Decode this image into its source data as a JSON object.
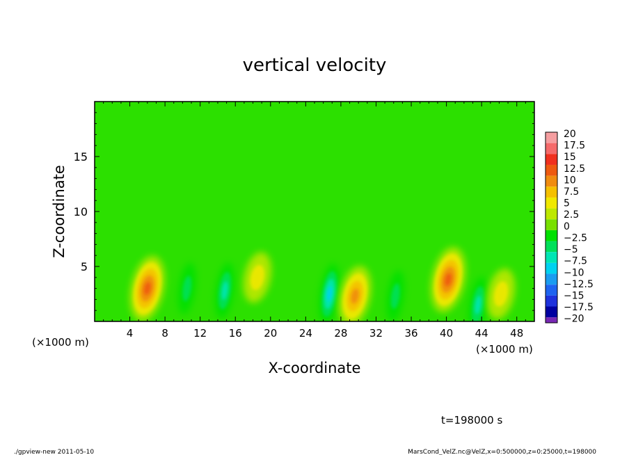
{
  "chart_data": {
    "type": "heatmap",
    "title": "vertical velocity",
    "xlabel": "X-coordinate",
    "ylabel": "Z-coordinate",
    "x_unit_left": "(×1000 m)",
    "x_unit_right": "(×1000 m)",
    "x_ticks": [
      4,
      8,
      12,
      16,
      20,
      24,
      28,
      32,
      36,
      40,
      44,
      48
    ],
    "y_ticks": [
      5,
      10,
      15
    ],
    "xlim": [
      0,
      50
    ],
    "ylim": [
      0,
      20
    ],
    "colorbar": {
      "labels": [
        "20",
        "17.5",
        "15",
        "12.5",
        "10",
        "7.5",
        "5",
        "2.5",
        "0",
        "−2.5",
        "−5",
        "−7.5",
        "−10",
        "−12.5",
        "−15",
        "−17.5",
        "−20"
      ],
      "colors": [
        "#f59ea0",
        "#f56a6a",
        "#f0301e",
        "#ee5a10",
        "#f08c10",
        "#f5c000",
        "#f0e800",
        "#bde800",
        "#78e000",
        "#00e000",
        "#00e05a",
        "#00e6b4",
        "#00d2f0",
        "#1a9cf0",
        "#1e64f0",
        "#1e32dc",
        "#0000a0",
        "#7828b4"
      ]
    },
    "features": [
      {
        "kind": "updraft",
        "x": 6.0,
        "z": 3.0,
        "value": 12.5
      },
      {
        "kind": "downdraft",
        "x": 10.5,
        "z": 3.0,
        "value": -5
      },
      {
        "kind": "downdraft",
        "x": 14.8,
        "z": 2.8,
        "value": -7.5
      },
      {
        "kind": "updraft",
        "x": 18.5,
        "z": 4.0,
        "value": 5
      },
      {
        "kind": "downdraft",
        "x": 26.7,
        "z": 2.5,
        "value": -10
      },
      {
        "kind": "updraft",
        "x": 29.6,
        "z": 2.3,
        "value": 10
      },
      {
        "kind": "downdraft",
        "x": 34.2,
        "z": 2.3,
        "value": -5
      },
      {
        "kind": "updraft",
        "x": 40.2,
        "z": 3.8,
        "value": 12.5
      },
      {
        "kind": "downdraft",
        "x": 43.6,
        "z": 1.5,
        "value": -7.5
      },
      {
        "kind": "updraft",
        "x": 46.2,
        "z": 2.5,
        "value": 5
      }
    ]
  },
  "time_label": "t=198000 s",
  "footer": {
    "left": "./gpview-new   2011-05-10",
    "right": "MarsCond_VelZ.nc@VelZ,x=0:500000,z=0:25000,t=198000"
  }
}
